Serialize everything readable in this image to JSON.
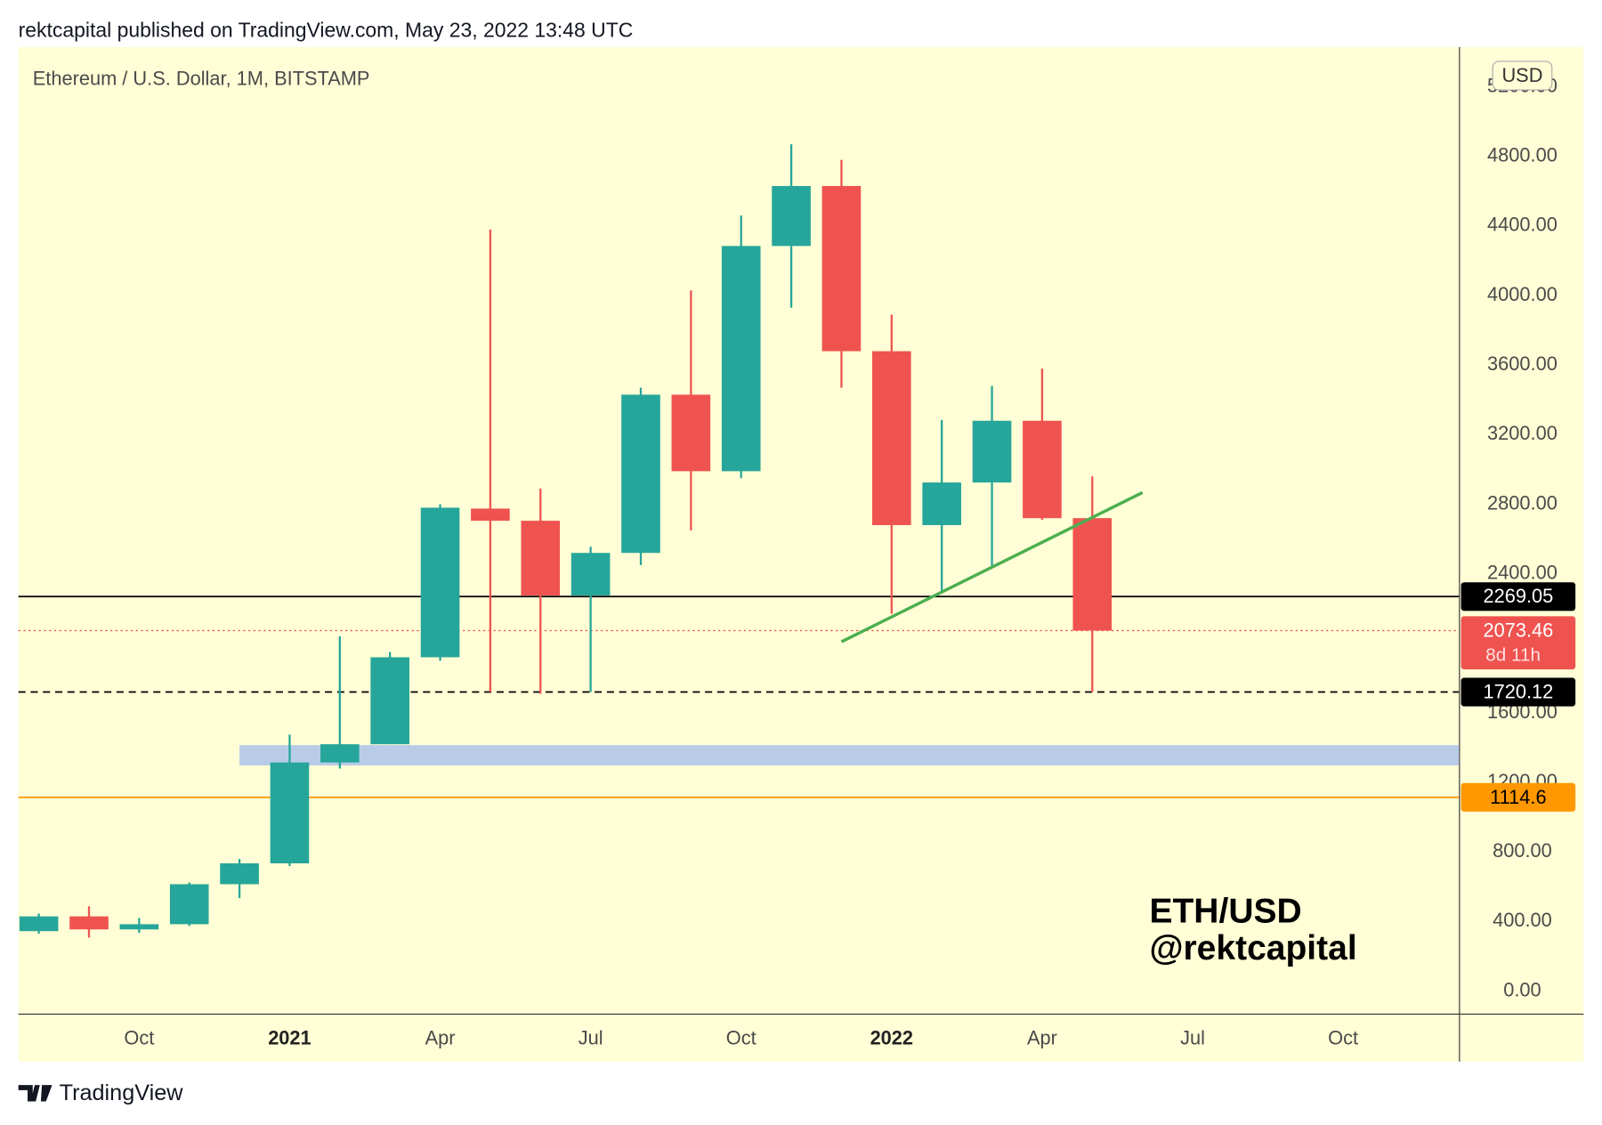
{
  "header": "rektcapital published on TradingView.com, May 23, 2022 13:48 UTC",
  "footer": {
    "brand": "TradingView"
  },
  "chart_data": {
    "type": "candlestick",
    "title": "Ethereum / U.S. Dollar, 1M, BITSTAMP",
    "currency": "USD",
    "watermark": [
      "ETH/USD",
      "@rektcapital"
    ],
    "x": [
      "2020-08",
      "2020-09",
      "2020-10",
      "2020-11",
      "2020-12",
      "2021-01",
      "2021-02",
      "2021-03",
      "2021-04",
      "2021-05",
      "2021-06",
      "2021-07",
      "2021-08",
      "2021-09",
      "2021-10",
      "2021-11",
      "2021-12",
      "2022-01",
      "2022-02",
      "2022-03",
      "2022-04",
      "2022-05"
    ],
    "open": [
      345,
      430,
      355,
      385,
      615,
      735,
      1315,
      1420,
      1920,
      2775,
      2705,
      2275,
      2520,
      3430,
      2990,
      4285,
      4630,
      3680,
      2680,
      2925,
      3280,
      2720
    ],
    "high": [
      446,
      488,
      420,
      625,
      760,
      1475,
      2040,
      1950,
      2800,
      4380,
      2890,
      2555,
      3470,
      4030,
      4460,
      4870,
      4780,
      3890,
      3285,
      3480,
      3580,
      2960
    ],
    "low": [
      330,
      308,
      335,
      375,
      535,
      720,
      1280,
      1420,
      1900,
      1720,
      1710,
      1720,
      2450,
      2650,
      2950,
      3930,
      3470,
      2170,
      2300,
      2440,
      2710,
      1720
    ],
    "close": [
      430,
      355,
      385,
      615,
      735,
      1315,
      1420,
      1920,
      2780,
      2705,
      2275,
      2520,
      3430,
      2990,
      4285,
      4630,
      3680,
      2680,
      2925,
      3280,
      2720,
      2073.46
    ],
    "up_color": "#26a69a",
    "down_color": "#ef5350",
    "ylim": [
      -129,
      5429
    ],
    "yticks": [
      {
        "value": 0,
        "label": "0.00"
      },
      {
        "value": 400,
        "label": "400.00"
      },
      {
        "value": 800,
        "label": "800.00"
      },
      {
        "value": 1200,
        "label": "1200.00"
      },
      {
        "value": 1600,
        "label": "1600.00"
      },
      {
        "value": 2000,
        "label": "2000.00"
      },
      {
        "value": 2400,
        "label": "2400.00"
      },
      {
        "value": 2800,
        "label": "2800.00"
      },
      {
        "value": 3200,
        "label": "3200.00"
      },
      {
        "value": 3600,
        "label": "3600.00"
      },
      {
        "value": 4000,
        "label": "4000.00"
      },
      {
        "value": 4400,
        "label": "4400.00"
      },
      {
        "value": 4800,
        "label": "4800.00"
      },
      {
        "value": 5200,
        "label": "5200.00"
      }
    ],
    "xticks": [
      {
        "value": "2020-10",
        "label": "Oct"
      },
      {
        "value": "2021-01",
        "label": "2021"
      },
      {
        "value": "2021-04",
        "label": "Apr"
      },
      {
        "value": "2021-07",
        "label": "Jul"
      },
      {
        "value": "2021-10",
        "label": "Oct"
      },
      {
        "value": "2022-01",
        "label": "2022"
      },
      {
        "value": "2022-04",
        "label": "Apr"
      },
      {
        "value": "2022-07",
        "label": "Jul"
      },
      {
        "value": "2022-10",
        "label": "Oct"
      }
    ],
    "price_lines": [
      {
        "value": 2269.05,
        "color": "#000000",
        "style": "solid"
      },
      {
        "value": 2073.46,
        "color": "#ef5350",
        "style": "dotted",
        "countdown": "8d 11h"
      },
      {
        "value": 1720.12,
        "color": "#000000",
        "style": "dashed"
      },
      {
        "value": 1114.6,
        "color": "#ff9800",
        "style": "solid"
      }
    ],
    "zone": {
      "from": 1298,
      "to": 1415,
      "start": "2020-12",
      "color": "#b8cce8"
    },
    "trendline": {
      "x": [
        "2021-12",
        "2022-06"
      ],
      "values": [
        2009,
        2867
      ],
      "color": "#4caf50"
    }
  }
}
